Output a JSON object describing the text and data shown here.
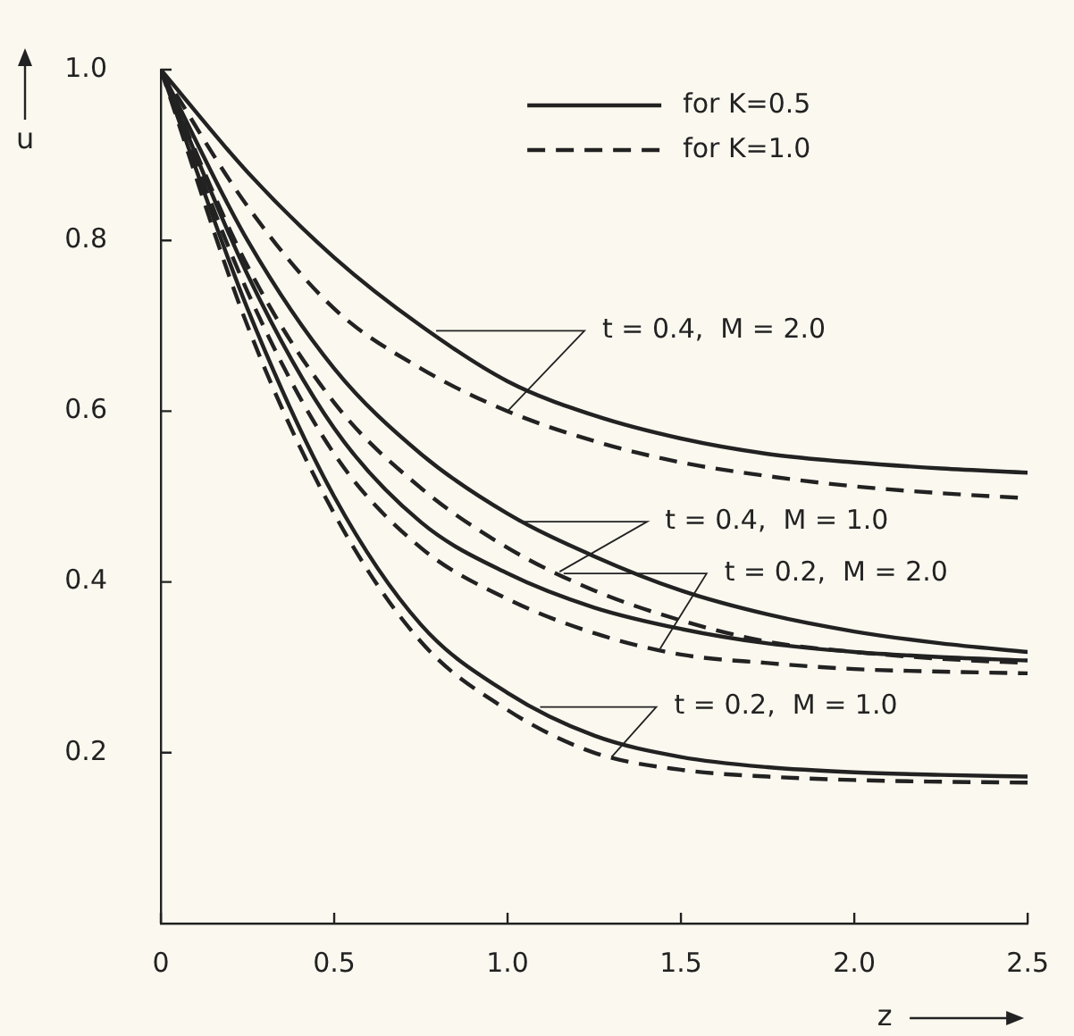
{
  "chart_data": {
    "type": "line",
    "xlabel": "z",
    "ylabel": "u",
    "x": [
      0,
      0.25,
      0.5,
      0.75,
      1.0,
      1.25,
      1.5,
      1.75,
      2.0,
      2.25,
      2.5
    ],
    "series": [
      {
        "name": "for K=0.5",
        "color": "#222222",
        "line_style": "solid",
        "values": [
          1.0,
          0.88,
          0.78,
          0.7,
          0.635,
          0.595,
          0.568,
          0.55,
          0.54,
          0.533,
          0.528
        ]
      },
      {
        "name": "for K=1.0",
        "color": "#222222",
        "line_style": "dashed",
        "values": [
          1.0,
          0.84,
          0.72,
          0.65,
          0.6,
          0.565,
          0.54,
          0.524,
          0.512,
          0.504,
          0.498
        ]
      },
      {
        "color": "#222222",
        "line_style": "solid",
        "values": [
          1.0,
          0.8,
          0.65,
          0.55,
          0.48,
          0.43,
          0.39,
          0.362,
          0.342,
          0.328,
          0.318
        ]
      },
      {
        "color": "#222222",
        "line_style": "dashed",
        "values": [
          1.0,
          0.77,
          0.61,
          0.51,
          0.44,
          0.39,
          0.355,
          0.33,
          0.318,
          0.31,
          0.305
        ]
      },
      {
        "color": "#222222",
        "line_style": "solid",
        "values": [
          1.0,
          0.76,
          0.58,
          0.47,
          0.41,
          0.37,
          0.345,
          0.328,
          0.318,
          0.312,
          0.308
        ]
      },
      {
        "color": "#222222",
        "line_style": "dashed",
        "values": [
          1.0,
          0.74,
          0.55,
          0.44,
          0.38,
          0.34,
          0.315,
          0.305,
          0.298,
          0.295,
          0.293
        ]
      },
      {
        "color": "#222222",
        "line_style": "solid",
        "values": [
          1.0,
          0.72,
          0.5,
          0.35,
          0.27,
          0.22,
          0.195,
          0.183,
          0.177,
          0.174,
          0.172
        ]
      },
      {
        "color": "#222222",
        "line_style": "dashed",
        "values": [
          1.0,
          0.7,
          0.48,
          0.33,
          0.25,
          0.2,
          0.18,
          0.172,
          0.168,
          0.166,
          0.165
        ]
      }
    ],
    "xlim": [
      0,
      2.5
    ],
    "xticks": [
      0,
      0.5,
      {
        "value": 1.0,
        "label": "1.0"
      },
      1.5,
      {
        "value": 2.0,
        "label": "2.0"
      },
      2.5
    ],
    "ylim": [
      0,
      1.0
    ],
    "yticks": [
      0.2,
      0.4,
      0.6,
      0.8,
      {
        "value": 1.0,
        "label": "1.0"
      }
    ],
    "grid": false,
    "legend": "top right",
    "marker": "none",
    "annotations": [
      {
        "text": "t = 0.4,  M = 2.0",
        "x": 1.0,
        "y": 0.6
      },
      {
        "text": "t = 0.4,  M = 1.0",
        "x": 1.15,
        "y": 0.412
      },
      {
        "text": "t = 0.2,  M = 2.0",
        "x": 1.44,
        "y": 0.322
      },
      {
        "text": "t = 0.2,  M = 1.0",
        "x": 1.3,
        "y": 0.195
      }
    ]
  }
}
